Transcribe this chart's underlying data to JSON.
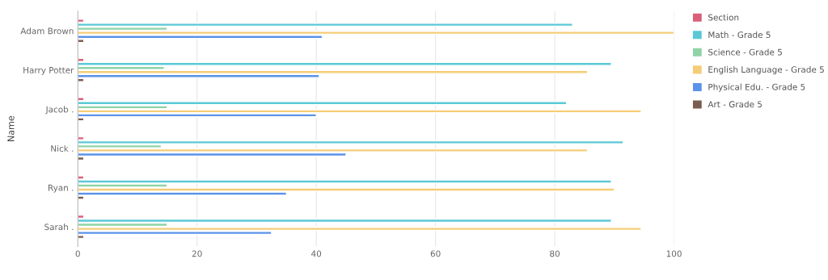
{
  "chart_data": {
    "type": "bar",
    "orientation": "horizontal",
    "ylabel": "Name",
    "categories": [
      "Adam Brown",
      "Harry Potter",
      "Jacob .",
      "Nick .",
      "Ryan .",
      "Sarah ."
    ],
    "series": [
      {
        "name": "Section",
        "color": "#d9607a",
        "values": [
          1,
          1,
          1,
          1,
          1,
          1
        ]
      },
      {
        "name": "Math - Grade 5",
        "color": "#5bc8d6",
        "values": [
          83,
          89.5,
          82,
          91.5,
          89.5,
          89.5
        ]
      },
      {
        "name": "Science - Grade 5",
        "color": "#8fd3a6",
        "values": [
          15,
          14.5,
          15,
          14,
          15,
          15
        ]
      },
      {
        "name": "English Language - Grade 5",
        "color": "#f5cd78",
        "values": [
          100,
          85.5,
          94.5,
          85.5,
          90,
          94.5
        ]
      },
      {
        "name": "Physical Edu. - Grade 5",
        "color": "#5b93e8",
        "values": [
          41,
          40.5,
          40,
          45,
          35,
          32.5
        ]
      },
      {
        "name": "Art - Grade 5",
        "color": "#7b5c50",
        "values": [
          1,
          1,
          1,
          1,
          1,
          1
        ]
      }
    ],
    "xlim": [
      0,
      100
    ],
    "xticks": [
      0,
      20,
      40,
      60,
      80,
      100
    ],
    "grid": "x",
    "legend": "top right"
  }
}
